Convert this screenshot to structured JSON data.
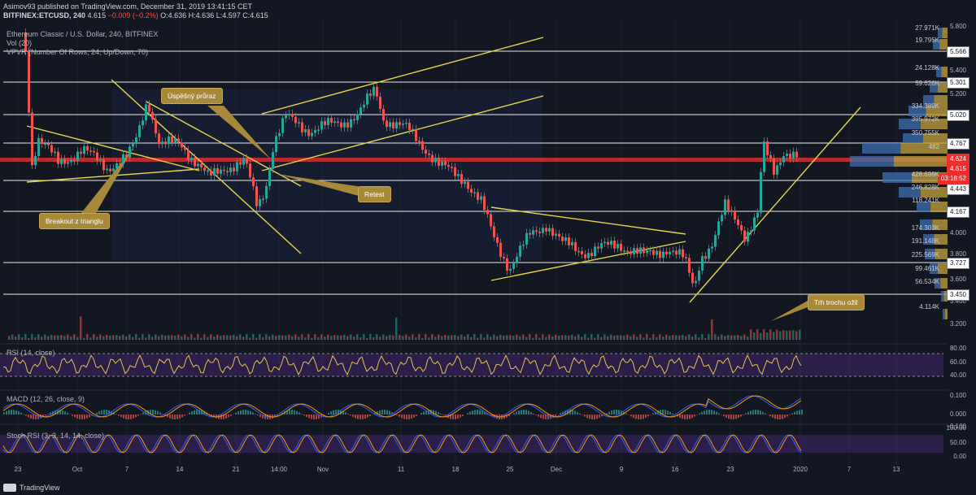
{
  "header": {
    "publisher_line": "Asimov93 published on TradingView.com, December 31, 2019 13:41:15 CET",
    "symbol": "BITFINEX:ETCUSD, 240",
    "price": "4.615",
    "change": "−0.009 (−0.2%)",
    "ohlc": "O:4.636 H:4.636 L:4.597 C:4.615"
  },
  "indicators": {
    "title": "Ethereum Classic / U.S. Dollar, 240, BITFINEX",
    "vol": "Vol (20)",
    "vpvr": "VPVR (Number Of Rows, 24, Up/Down, 70)",
    "rsi": "RSI (14, close)",
    "macd": "MACD (12, 26, close, 9)",
    "stoch": "Stoch RSI (3, 3, 14, 14, close)"
  },
  "price_axis": {
    "ticks": [
      "5.800",
      "5.400",
      "5.200",
      "4.000",
      "3.800",
      "3.600",
      "3.400",
      "3.200"
    ],
    "levels": [
      "5.566",
      "5.301",
      "5.020",
      "4.767",
      "4.443",
      "4.167",
      "3.727",
      "3.450"
    ],
    "current": "4.624",
    "current2": "4.615",
    "countdown": "03:18:52"
  },
  "vpvr_rows": [
    "27.971K",
    "19.795K",
    "24.128K",
    "59.626K",
    "334.389K",
    "395.972K",
    "350.755K",
    "482",
    "428.698K",
    "246.828K",
    "118.241K",
    "174.303K",
    "191.148K",
    "225.569K",
    "99.461K",
    "56.534K",
    "4.114K"
  ],
  "rsi_axis": [
    "80.00",
    "60.00",
    "40.00"
  ],
  "macd_axis": [
    "0.100",
    "0.000",
    "-0.100"
  ],
  "stoch_axis": [
    "100.00",
    "50.00",
    "0.00"
  ],
  "time_axis": [
    "23",
    "Oct",
    "7",
    "14",
    "21",
    "14:00",
    "Nov",
    "11",
    "18",
    "25",
    "Dec",
    "9",
    "16",
    "23",
    "2020",
    "7",
    "13"
  ],
  "annotations": {
    "breakout": "Breakout z trianglu",
    "uspesny": "Úspěšný průraz",
    "retest": "Retest",
    "trh": "Trh trochu ožil"
  },
  "footer": {
    "brand": "TradingView"
  },
  "colors": {
    "bg": "#131722",
    "trend": "#e6d64a",
    "up": "#26a69a",
    "down": "#ef5350",
    "level": "#ffffff",
    "vpvr": "#d4a017"
  }
}
